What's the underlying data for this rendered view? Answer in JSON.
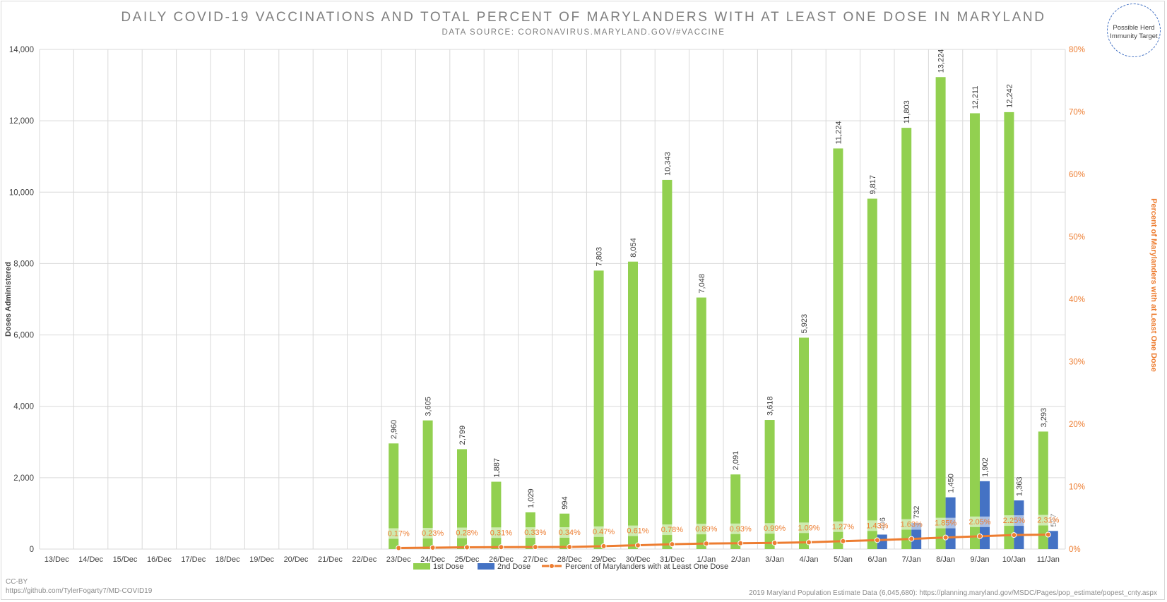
{
  "chart_data": {
    "type": "bar",
    "title": "DAILY COVID-19 VACCINATIONS AND TOTAL PERCENT OF MARYLANDERS WITH AT LEAST ONE DOSE IN MARYLAND",
    "subtitle": "DATA SOURCE: CORONAVIRUS.MARYLAND.GOV/#VACCINE",
    "ylabel": "Doses Administered",
    "y2label": "Percent of Marylanders with at Least One Dose",
    "ylim": [
      0,
      14000
    ],
    "y2lim": [
      0,
      80
    ],
    "yticks": [
      "0",
      "2,000",
      "4,000",
      "6,000",
      "8,000",
      "10,000",
      "12,000",
      "14,000"
    ],
    "y2ticks": [
      "0%",
      "10%",
      "20%",
      "30%",
      "40%",
      "50%",
      "60%",
      "70%",
      "80%"
    ],
    "grid": true,
    "legend_position": "bottom",
    "categories": [
      "13/Dec",
      "14/Dec",
      "15/Dec",
      "16/Dec",
      "17/Dec",
      "18/Dec",
      "19/Dec",
      "20/Dec",
      "21/Dec",
      "22/Dec",
      "23/Dec",
      "24/Dec",
      "25/Dec",
      "26/Dec",
      "27/Dec",
      "28/Dec",
      "29/Dec",
      "30/Dec",
      "31/Dec",
      "1/Jan",
      "2/Jan",
      "3/Jan",
      "4/Jan",
      "5/Jan",
      "6/Jan",
      "7/Jan",
      "8/Jan",
      "9/Jan",
      "10/Jan",
      "11/Jan"
    ],
    "series": [
      {
        "name": "1st Dose",
        "type": "bar",
        "color": "#92d050",
        "values": [
          null,
          null,
          null,
          null,
          null,
          null,
          null,
          null,
          null,
          null,
          2960,
          3605,
          2799,
          1887,
          1029,
          994,
          7803,
          8054,
          10343,
          7048,
          2091,
          3618,
          5923,
          11224,
          9817,
          11803,
          13224,
          12211,
          12242,
          3293
        ],
        "labels": [
          "",
          "",
          "",
          "",
          "",
          "",
          "",
          "",
          "",
          "",
          "2,960",
          "3,605",
          "2,799",
          "1,887",
          "1,029",
          "994",
          "7,803",
          "8,054",
          "10,343",
          "7,048",
          "2,091",
          "3,618",
          "5,923",
          "11,224",
          "9,817",
          "11,803",
          "13,224",
          "12,211",
          "12,242",
          "3,293"
        ]
      },
      {
        "name": "2nd Dose",
        "type": "bar",
        "color": "#4472c4",
        "values": [
          null,
          null,
          null,
          null,
          null,
          null,
          null,
          null,
          null,
          null,
          null,
          null,
          null,
          null,
          null,
          null,
          null,
          null,
          null,
          null,
          null,
          null,
          null,
          null,
          406,
          732,
          1450,
          1902,
          1363,
          507
        ],
        "labels": [
          "",
          "",
          "",
          "",
          "",
          "",
          "",
          "",
          "",
          "",
          "",
          "",
          "",
          "",
          "",
          "",
          "",
          "",
          "",
          "",
          "",
          "",
          "",
          "",
          "406",
          "732",
          "1,450",
          "1,902",
          "1,363",
          "507"
        ]
      },
      {
        "name": "Percent of Marylanders with at Least One Dose",
        "type": "line",
        "color": "#ed7d31",
        "values": [
          null,
          null,
          null,
          null,
          null,
          null,
          null,
          null,
          null,
          null,
          0.17,
          0.23,
          0.28,
          0.31,
          0.33,
          0.34,
          0.47,
          0.61,
          0.78,
          0.89,
          0.93,
          0.99,
          1.09,
          1.27,
          1.43,
          1.63,
          1.85,
          2.05,
          2.25,
          2.31
        ],
        "labels": [
          "",
          "",
          "",
          "",
          "",
          "",
          "",
          "",
          "",
          "",
          "0.17%",
          "0.23%",
          "0.28%",
          "0.31%",
          "0.33%",
          "0.34%",
          "0.47%",
          "0.61%",
          "0.78%",
          "0.89%",
          "0.93%",
          "0.99%",
          "1.09%",
          "1.27%",
          "1.43%",
          "1.63%",
          "1.85%",
          "2.05%",
          "2.25%",
          "2.31%"
        ]
      }
    ],
    "annotations": {
      "herd_target": "Possible Herd Immunity Target"
    }
  },
  "footer": {
    "license": "CC-BY",
    "source_url": "https://github.com/TylerFogarty7/MD-COVID19",
    "population_note": "2019 Maryland Population Estimate Data (6,045,680): https://planning.maryland.gov/MSDC/Pages/pop_estimate/popest_cnty.aspx"
  }
}
